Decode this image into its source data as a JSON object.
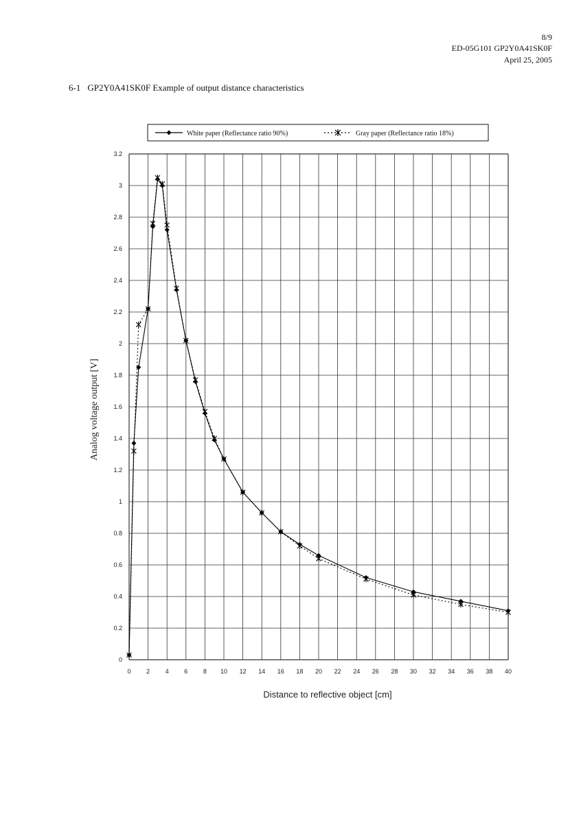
{
  "header": {
    "page": "8/9",
    "doc_id": "ED-05G101 GP2Y0A41SK0F",
    "date": "April 25, 2005"
  },
  "section": {
    "number": "6-1",
    "title": "GP2Y0A41SK0F Example of output distance characteristics"
  },
  "chart_data": {
    "type": "line",
    "title": "",
    "xlabel": "Distance to reflective object   [cm]",
    "ylabel": "Analog voltage output [V]",
    "xlim": [
      0,
      40
    ],
    "ylim": [
      0,
      3.2
    ],
    "x_ticks": [
      "0",
      "2",
      "4",
      "6",
      "8",
      "10",
      "12",
      "14",
      "16",
      "18",
      "20",
      "22",
      "24",
      "26",
      "28",
      "30",
      "32",
      "34",
      "36",
      "38",
      "40"
    ],
    "y_ticks": [
      "0",
      "0.2",
      "0.4",
      "0.6",
      "0.8",
      "1",
      "1.2",
      "1.4",
      "1.6",
      "1.8",
      "2",
      "2.2",
      "2.4",
      "2.6",
      "2.8",
      "3",
      "3.2"
    ],
    "grid": true,
    "legend_position": "top",
    "series": [
      {
        "name": "White paper (Reflectance ratio 90%)",
        "style": "solid",
        "marker": "diamond",
        "color": "#000000",
        "x": [
          0,
          0.5,
          1,
          2,
          2.5,
          3,
          3.5,
          4,
          5,
          6,
          7,
          8,
          9,
          10,
          12,
          14,
          16,
          18,
          20,
          25,
          30,
          35,
          40
        ],
        "y": [
          0.03,
          1.37,
          1.85,
          2.22,
          2.74,
          3.04,
          3.0,
          2.72,
          2.34,
          2.02,
          1.76,
          1.56,
          1.39,
          1.27,
          1.06,
          0.93,
          0.81,
          0.73,
          0.66,
          0.52,
          0.43,
          0.37,
          0.31
        ]
      },
      {
        "name": "Gray paper  (Reflectance ratio 18%)",
        "style": "dotted",
        "marker": "asterisk",
        "color": "#000000",
        "x": [
          0,
          0.5,
          1,
          2,
          2.5,
          3,
          3.5,
          4,
          5,
          6,
          7,
          8,
          9,
          10,
          12,
          14,
          16,
          18,
          20,
          25,
          30,
          35,
          40
        ],
        "y": [
          0.03,
          1.32,
          2.12,
          2.22,
          2.76,
          3.05,
          3.01,
          2.75,
          2.35,
          2.02,
          1.77,
          1.57,
          1.4,
          1.27,
          1.06,
          0.93,
          0.81,
          0.72,
          0.64,
          0.51,
          0.41,
          0.35,
          0.3
        ]
      }
    ]
  }
}
